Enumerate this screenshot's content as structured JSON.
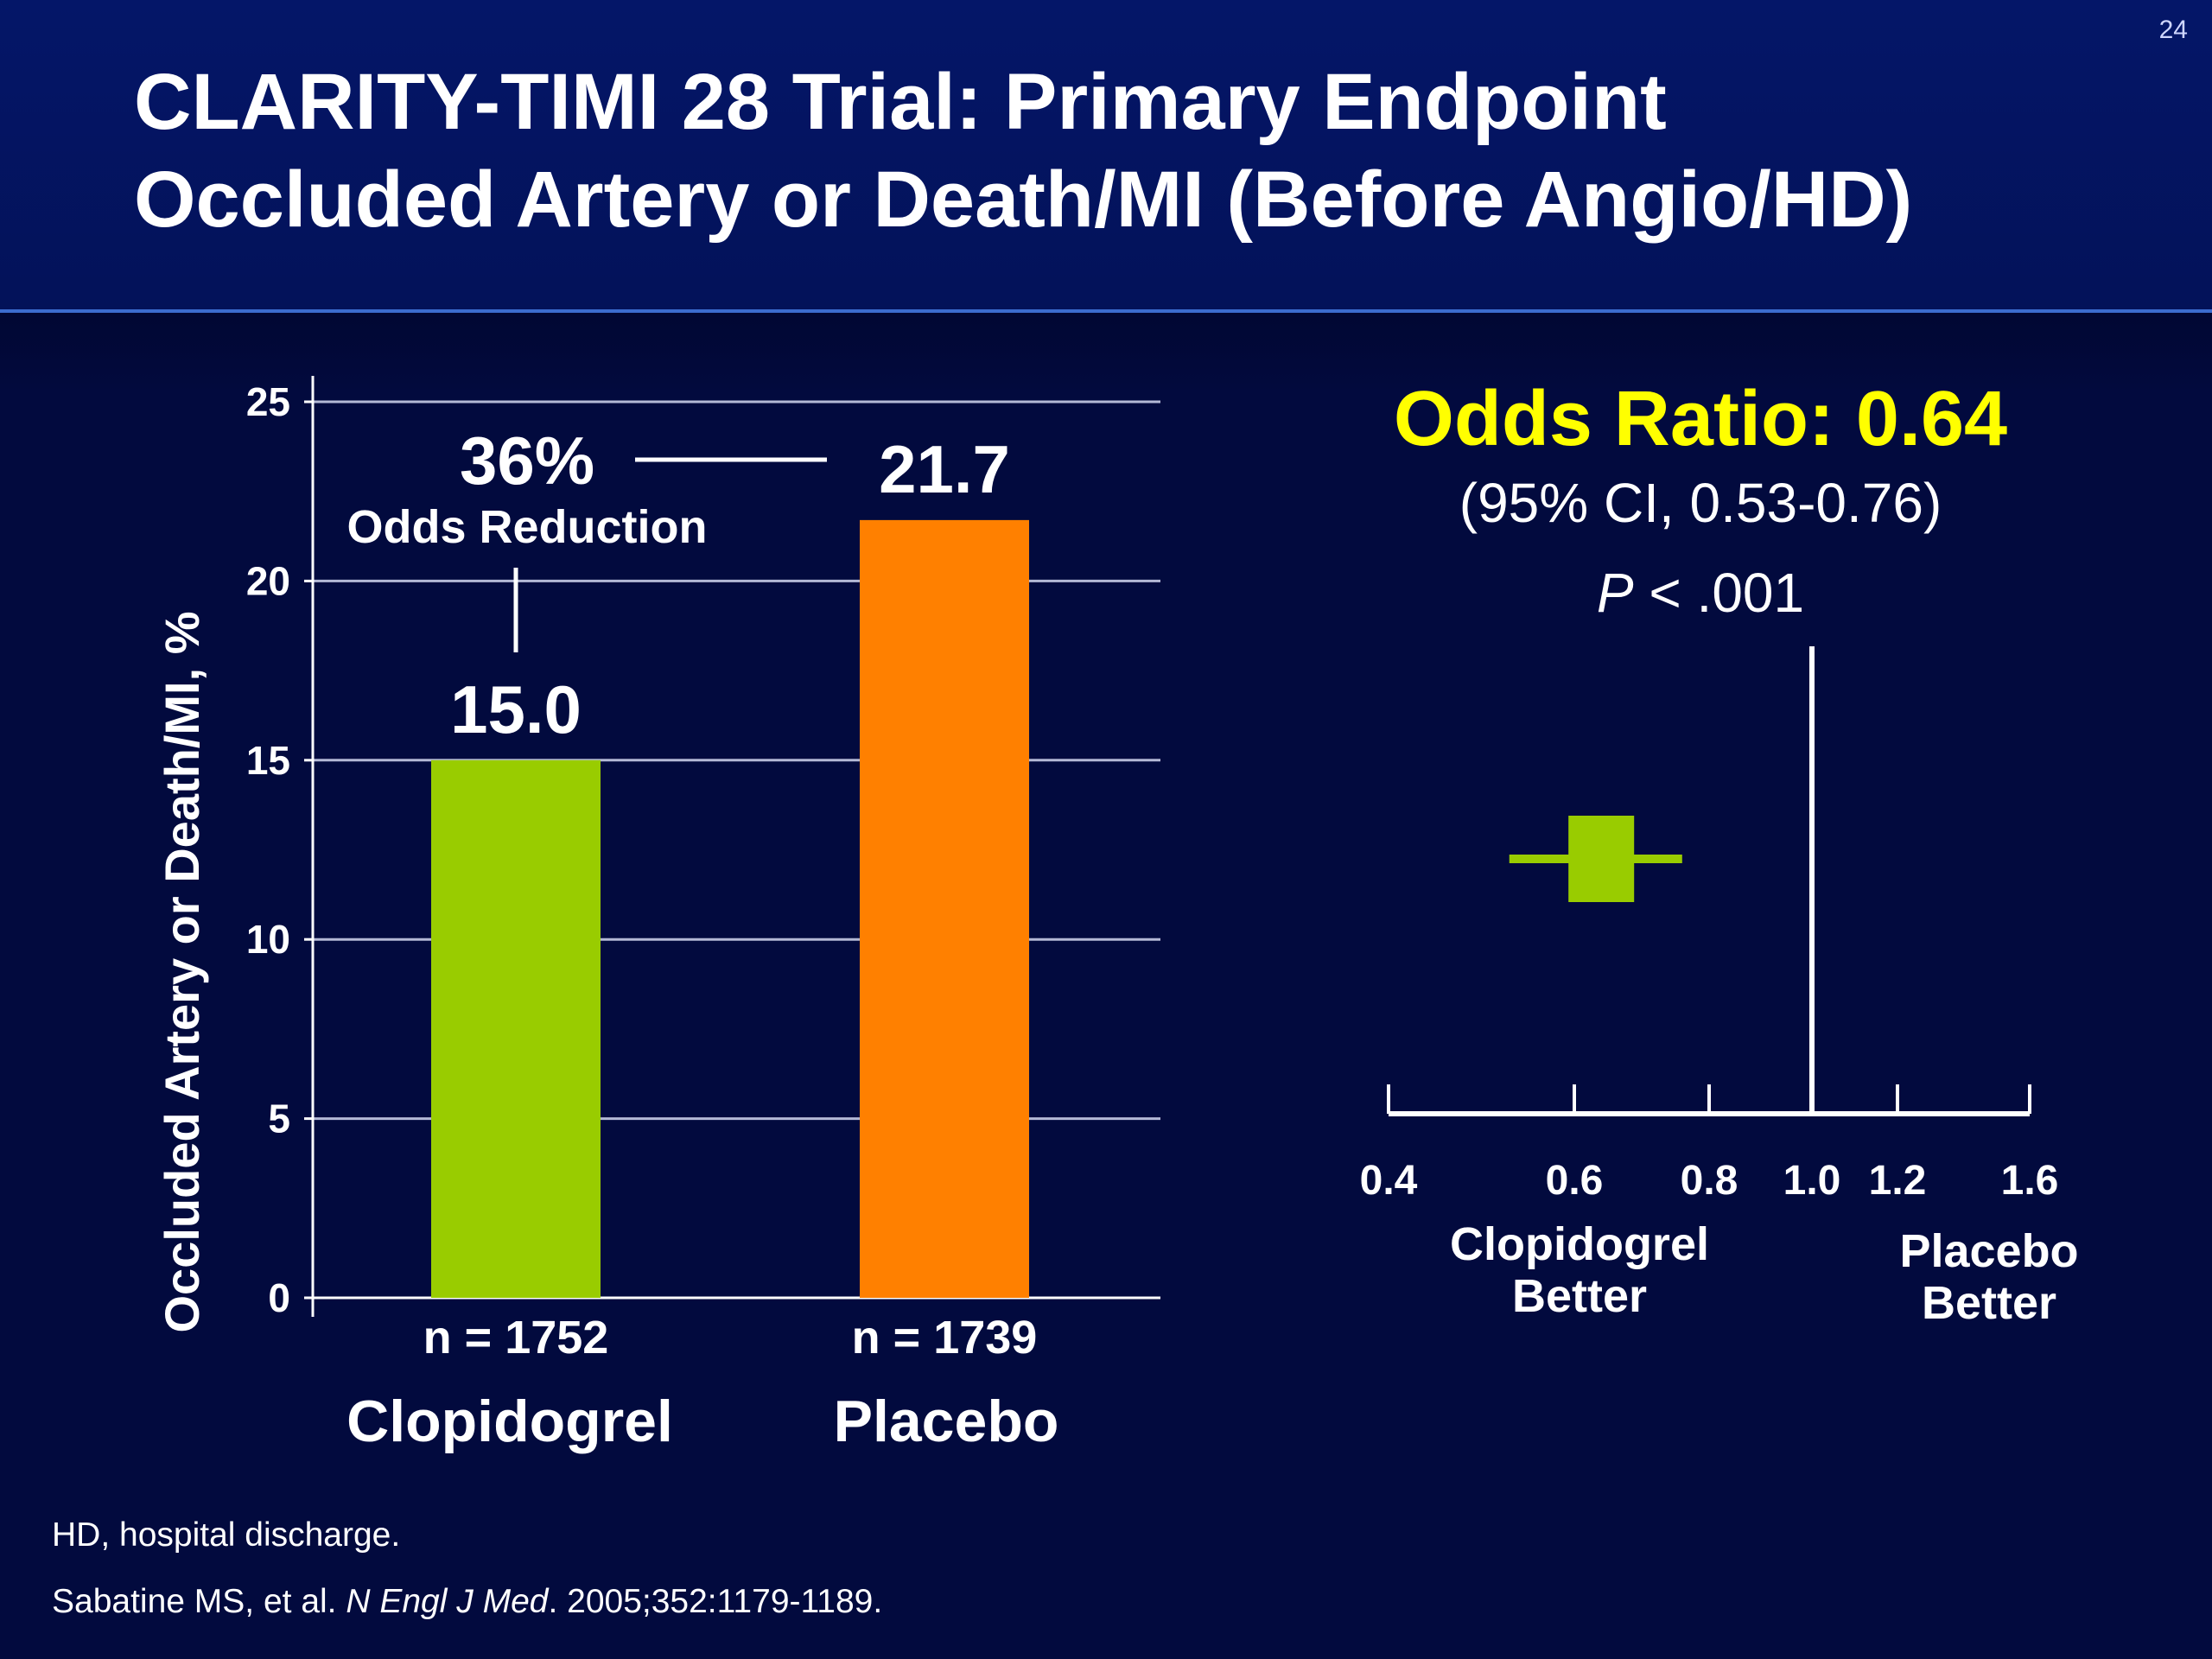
{
  "page": {
    "number": "24"
  },
  "header": {
    "title_line1": "CLARITY-TIMI 28 Trial: Primary Endpoint",
    "title_line2": "Occluded Artery or Death/MI (Before Angio/HD)"
  },
  "colors": {
    "background": "#020a3e",
    "header": "#041668",
    "clopidogrel": "#99cc00",
    "placebo": "#ff8000",
    "odds_ratio_text": "#ffff00"
  },
  "chart_data": [
    {
      "type": "bar",
      "categories": [
        "Clopidogrel",
        "Placebo"
      ],
      "sample_sizes": [
        "n = 1752",
        "n = 1739"
      ],
      "values": [
        15.0,
        21.7
      ],
      "value_labels": [
        "15.0",
        "21.7"
      ],
      "colors": [
        "#99cc00",
        "#ff8000"
      ],
      "ylabel": "Occluded Artery or Death/MI, %",
      "ylim": [
        0,
        25
      ],
      "yticks": [
        0,
        5,
        10,
        15,
        20,
        25
      ],
      "grid": true,
      "annotation": {
        "percent": "36%",
        "text": "Odds Reduction"
      }
    },
    {
      "type": "scatter",
      "subtype": "forest",
      "title": "Odds Ratio: 0.64",
      "ci_text": "(95% CI, 0.53-0.76)",
      "p_label": "P",
      "p_text": " < .001",
      "point": 0.64,
      "ci": [
        0.53,
        0.76
      ],
      "reference": 1.0,
      "xticks": [
        0.4,
        0.6,
        0.8,
        1.0,
        1.2,
        1.6
      ],
      "xtick_labels": [
        "0.4",
        "0.6",
        "0.8",
        "1.0",
        "1.2",
        "1.6"
      ],
      "left_label": [
        "Clopidogrel",
        "Better"
      ],
      "right_label": [
        "Placebo",
        "Better"
      ],
      "color": "#99cc00"
    }
  ],
  "footnotes": {
    "abbrev": "HD, hospital discharge.",
    "ref_authors": "Sabatine MS, et al. ",
    "ref_journal": "N Engl J Med",
    "ref_details": ". 2005;352:1179-1189."
  }
}
